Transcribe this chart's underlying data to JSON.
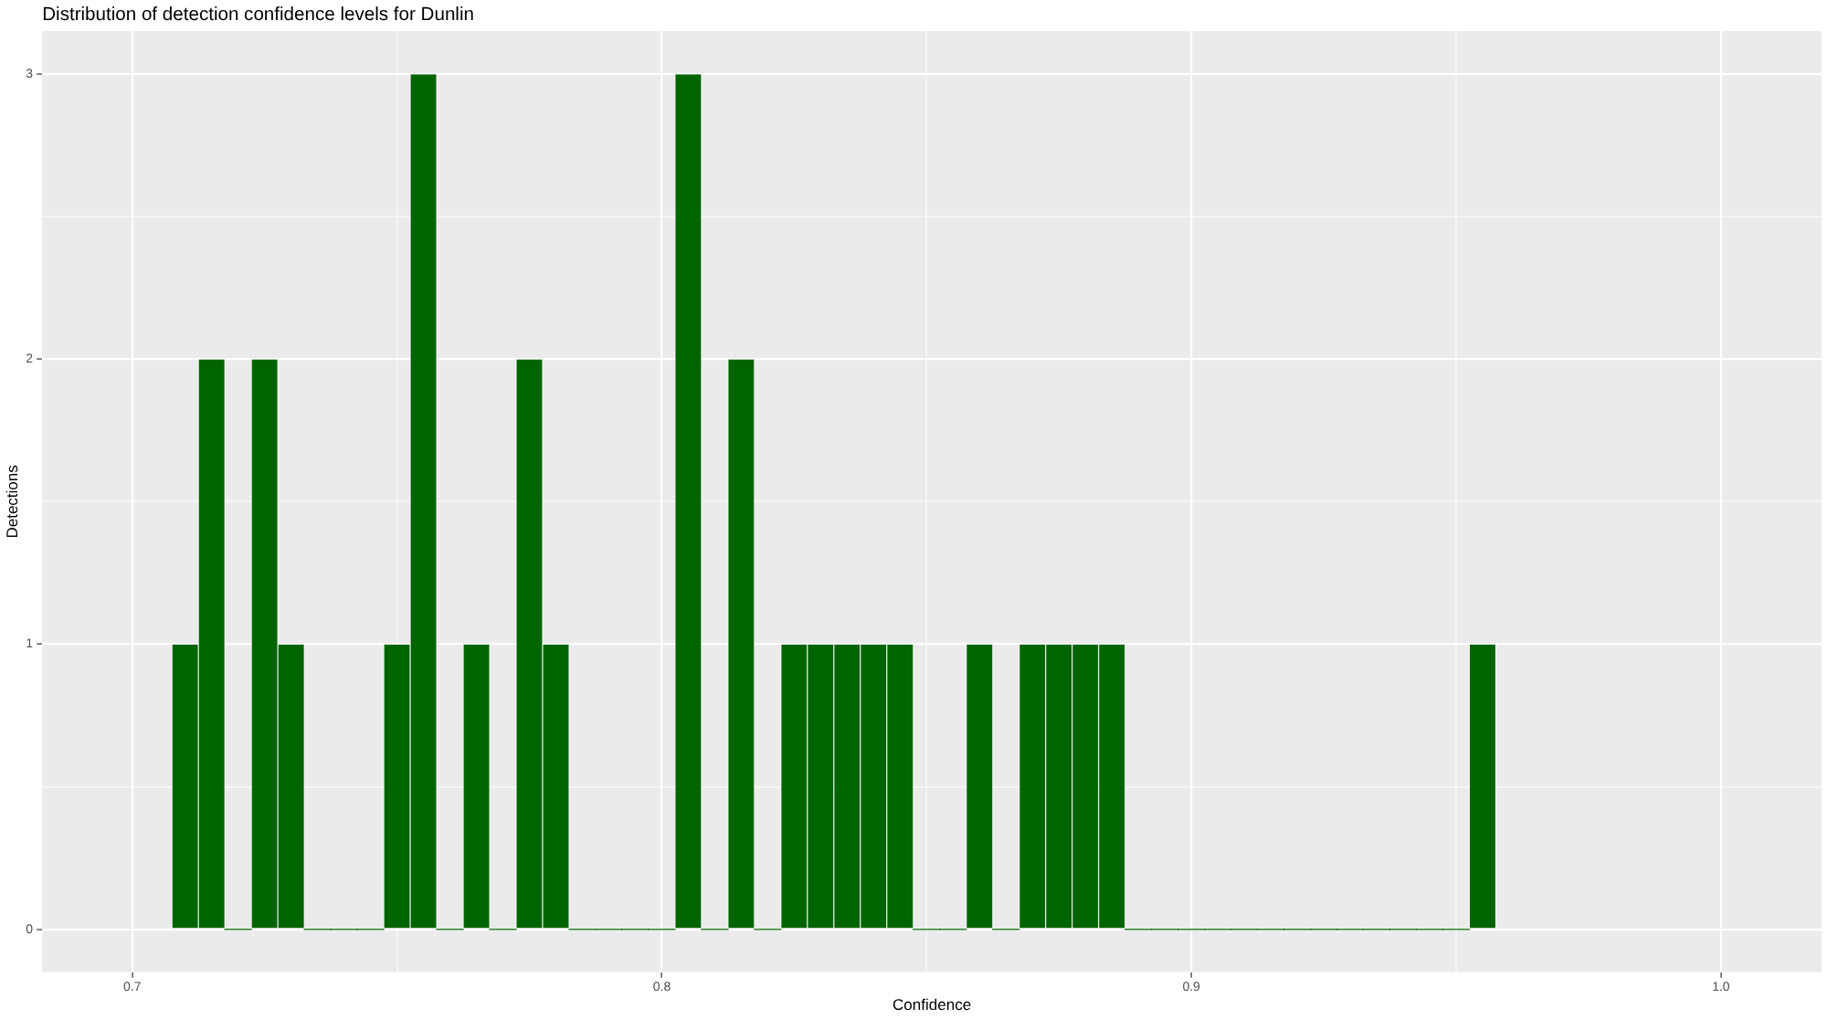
{
  "chart_data": {
    "type": "histogram",
    "title": "Distribution of detection confidence levels for Dunlin",
    "xlabel": "Confidence",
    "ylabel": "Detections",
    "bins": [
      0.7075,
      0.7125,
      0.7175,
      0.7225,
      0.7275,
      0.7325,
      0.7375,
      0.7425,
      0.7475,
      0.7525,
      0.7575,
      0.7625,
      0.7675,
      0.7725,
      0.7775,
      0.7825,
      0.7875,
      0.7925,
      0.7975,
      0.8025,
      0.8075,
      0.8125,
      0.8175,
      0.8225,
      0.8275,
      0.8325,
      0.8375,
      0.8425,
      0.8475,
      0.8525,
      0.8575,
      0.8625,
      0.8675,
      0.8725,
      0.8775,
      0.8825,
      0.8875,
      0.8925,
      0.8975,
      0.9025,
      0.9075,
      0.9125,
      0.9175,
      0.9225,
      0.9275,
      0.9325,
      0.9375,
      0.9425,
      0.9475,
      0.9525,
      0.9575
    ],
    "values": [
      1,
      2,
      0,
      2,
      1,
      0,
      0,
      0,
      1,
      3,
      0,
      1,
      0,
      2,
      1,
      0,
      0,
      0,
      0,
      3,
      0,
      2,
      0,
      1,
      1,
      1,
      1,
      1,
      0,
      0,
      1,
      0,
      1,
      1,
      1,
      1,
      0,
      0,
      0,
      0,
      0,
      0,
      0,
      0,
      0,
      0,
      0,
      0,
      0,
      1
    ],
    "color": "#006400",
    "xlim": [
      0.683,
      1.019
    ],
    "xticks": [
      0.7,
      {
        "value": 0.75,
        "label": null
      },
      0.8,
      {
        "value": 0.85,
        "label": null
      },
      0.9,
      {
        "value": 0.95,
        "label": null
      },
      {
        "value": 1,
        "label": "1.0"
      }
    ],
    "ylim": [
      -0.15,
      3.15
    ],
    "yticks": [
      0,
      {
        "value": 0.5,
        "label": null
      },
      1,
      {
        "value": 1.5,
        "label": null
      },
      2,
      {
        "value": 2.5,
        "label": null
      },
      3
    ],
    "grid": true
  }
}
